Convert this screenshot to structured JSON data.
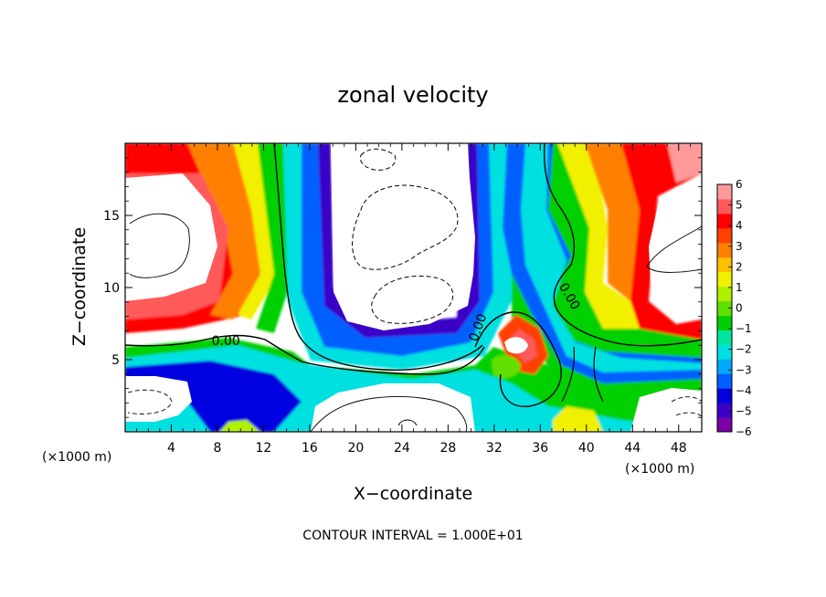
{
  "chart_data": {
    "type": "heatmap",
    "title": "zonal velocity",
    "xlabel": "X−coordinate",
    "ylabel": "Z−coordinate",
    "x_units_left": "(×1000 m)",
    "x_units_right": "(×1000 m)",
    "x_ticks": [
      4,
      8,
      12,
      16,
      20,
      24,
      28,
      32,
      36,
      40,
      44,
      48
    ],
    "y_ticks": [
      5,
      10,
      15
    ],
    "xlim": [
      0,
      50
    ],
    "ylim": [
      0,
      20
    ],
    "contour_interval_text": "CONTOUR INTERVAL = 1.000E+01",
    "contour_labels": [
      {
        "text": "0.00",
        "x": 7.5,
        "y": 6.0
      },
      {
        "text": "0.00",
        "x": 30.5,
        "y": 6.2
      },
      {
        "text": "0.00",
        "x": 37.6,
        "y": 10.1
      }
    ],
    "colorbar": {
      "ticks": [
        "6",
        "5",
        "4",
        "3",
        "2",
        "1",
        "0",
        "−1",
        "−2",
        "−3",
        "−4",
        "−5",
        "−6"
      ],
      "min": -6,
      "max": 6,
      "colors": [
        "#7a00a8",
        "#3a00c8",
        "#0000e0",
        "#0060ff",
        "#00a8ff",
        "#00e0e0",
        "#00e6a0",
        "#00d000",
        "#60e000",
        "#b0f000",
        "#f0f000",
        "#ffc000",
        "#ff8000",
        "#ff4000",
        "#ff0000",
        "#ff5a5a",
        "#ff9a9a"
      ]
    }
  }
}
